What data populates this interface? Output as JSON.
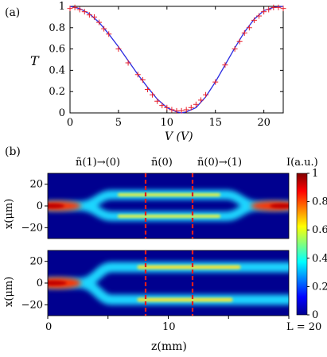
{
  "panel_a_label": "(a)",
  "panel_b_label": "(b)",
  "chart_data": [
    {
      "type": "line",
      "panel": "(a)",
      "xlabel": "V (V)",
      "ylabel": "T",
      "xlim": [
        0,
        22
      ],
      "ylim": [
        0,
        1
      ],
      "xticks": [
        "0",
        "5",
        "10",
        "15",
        "20"
      ],
      "yticks": [
        "0",
        "0.2",
        "0.4",
        "0.6",
        "0.8",
        "1"
      ],
      "series": [
        {
          "style": "line",
          "color": "#2a2ae0",
          "x": [
            0,
            1,
            2,
            3,
            4,
            5,
            6,
            7,
            8,
            9,
            10,
            11,
            11.5,
            12,
            13,
            14,
            15,
            16,
            17,
            18,
            19,
            20,
            21,
            22
          ],
          "y": [
            1.0,
            0.98,
            0.93,
            0.85,
            0.74,
            0.62,
            0.49,
            0.36,
            0.24,
            0.13,
            0.05,
            0.01,
            0.0,
            0.01,
            0.05,
            0.15,
            0.29,
            0.45,
            0.61,
            0.76,
            0.88,
            0.96,
            0.99,
            1.0
          ]
        },
        {
          "style": "markers",
          "marker": "+",
          "color": "#e8202c",
          "x": [
            0,
            0.5,
            1,
            1.5,
            2,
            2.5,
            3,
            3.5,
            4,
            5,
            6,
            7,
            7.5,
            8,
            8.5,
            9,
            9.5,
            10,
            10.5,
            11,
            11.5,
            12,
            12.5,
            13,
            13.5,
            14,
            15,
            16,
            17,
            17.5,
            18,
            18.5,
            19,
            19.5,
            20,
            20.5,
            21,
            21.5,
            22
          ],
          "y": [
            0.98,
            0.99,
            0.97,
            0.95,
            0.92,
            0.9,
            0.85,
            0.79,
            0.74,
            0.6,
            0.47,
            0.36,
            0.31,
            0.22,
            0.17,
            0.11,
            0.07,
            0.05,
            0.03,
            0.02,
            0.02,
            0.03,
            0.05,
            0.08,
            0.12,
            0.17,
            0.29,
            0.45,
            0.6,
            0.67,
            0.75,
            0.8,
            0.87,
            0.91,
            0.95,
            0.97,
            0.99,
            0.99,
            0.98
          ]
        }
      ]
    },
    {
      "type": "heatmap",
      "panel": "(b)",
      "xlabel": "z(mm)",
      "ylabel": "x(μm)",
      "xlim": [
        0,
        20
      ],
      "ylim": [
        -30,
        30
      ],
      "xticks": [
        "0",
        "10"
      ],
      "end_label": "L = 20",
      "yticks": [
        "20",
        "0",
        "−20"
      ],
      "region_labels": [
        "ñ(1)→(0)",
        "ñ(0)",
        "ñ(0)→(1)"
      ],
      "dashed_lines_z": [
        8,
        12
      ],
      "colorbar": {
        "title": "I(a.u.)",
        "ticks": [
          "1",
          "0.8",
          "0.6",
          "0.4",
          "0.2",
          "0"
        ],
        "range": [
          0,
          1
        ]
      },
      "maps": [
        {
          "name": "upper",
          "description": "beam splits at z≈3-5 into two channels at x≈±10, recombines at z≈15-17",
          "split_start": 3,
          "split_end": 5,
          "merge_start": 15,
          "merge_end": 17,
          "channel_x": 10
        },
        {
          "name": "lower",
          "description": "beam splits at z≈3-5 into two channels at x≈±15, does not recombine",
          "split_start": 3,
          "split_end": 5,
          "channel_x": 15
        }
      ]
    }
  ]
}
